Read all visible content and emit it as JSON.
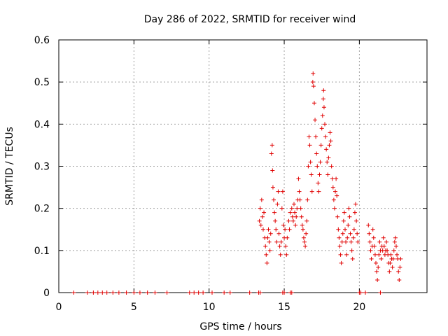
{
  "chart_data": {
    "type": "scatter",
    "title": "Day 286 of 2022, SRMTID for receiver wind",
    "xlabel": "GPS time / hours",
    "ylabel": "SRMTID / TECUs",
    "xlim": [
      0,
      24.5
    ],
    "ylim": [
      0,
      0.6
    ],
    "xticks": [
      0,
      5,
      10,
      15,
      20
    ],
    "yticks": [
      0,
      0.1,
      0.2,
      0.3,
      0.4,
      0.5,
      0.6
    ],
    "xtick_labels": [
      "0",
      "5",
      "10",
      "15",
      "20"
    ],
    "ytick_labels": [
      "0",
      "0.1",
      "0.2",
      "0.3",
      "0.4",
      "0.5",
      "0.6"
    ],
    "grid": true,
    "series": [
      {
        "name": "SRMTID",
        "color": "#e00000",
        "marker": "plus",
        "points": [
          [
            1.0,
            0
          ],
          [
            1.9,
            0
          ],
          [
            2.3,
            0
          ],
          [
            2.6,
            0
          ],
          [
            2.9,
            0
          ],
          [
            3.2,
            0
          ],
          [
            3.6,
            0
          ],
          [
            4.0,
            0
          ],
          [
            4.5,
            0
          ],
          [
            5.0,
            0
          ],
          [
            5.4,
            0
          ],
          [
            5.9,
            0
          ],
          [
            6.4,
            0
          ],
          [
            7.2,
            0
          ],
          [
            8.7,
            0
          ],
          [
            9.0,
            0
          ],
          [
            9.3,
            0
          ],
          [
            9.6,
            0
          ],
          [
            10.2,
            0
          ],
          [
            11.0,
            0
          ],
          [
            11.4,
            0
          ],
          [
            12.7,
            0
          ],
          [
            13.3,
            0
          ],
          [
            13.4,
            0
          ],
          [
            14.9,
            0
          ],
          [
            15.0,
            0
          ],
          [
            15.4,
            0
          ],
          [
            15.5,
            0
          ],
          [
            20.0,
            0
          ],
          [
            20.1,
            0
          ],
          [
            20.4,
            0
          ],
          [
            21.4,
            0
          ],
          [
            13.35,
            0.17
          ],
          [
            13.4,
            0.2
          ],
          [
            13.45,
            0.16
          ],
          [
            13.5,
            0.22
          ],
          [
            13.55,
            0.18
          ],
          [
            13.6,
            0.15
          ],
          [
            13.65,
            0.19
          ],
          [
            13.7,
            0.13
          ],
          [
            13.75,
            0.11
          ],
          [
            13.8,
            0.09
          ],
          [
            13.85,
            0.07
          ],
          [
            13.9,
            0.13
          ],
          [
            13.95,
            0.15
          ],
          [
            14.0,
            0.12
          ],
          [
            14.05,
            0.1
          ],
          [
            14.1,
            0.14
          ],
          [
            14.15,
            0.33
          ],
          [
            14.2,
            0.35
          ],
          [
            14.22,
            0.29
          ],
          [
            14.25,
            0.25
          ],
          [
            14.3,
            0.22
          ],
          [
            14.35,
            0.19
          ],
          [
            14.4,
            0.17
          ],
          [
            14.45,
            0.15
          ],
          [
            14.5,
            0.12
          ],
          [
            14.55,
            0.21
          ],
          [
            14.6,
            0.24
          ],
          [
            14.65,
            0.14
          ],
          [
            14.7,
            0.11
          ],
          [
            14.75,
            0.09
          ],
          [
            14.8,
            0.12
          ],
          [
            14.85,
            0.2
          ],
          [
            14.9,
            0.24
          ],
          [
            14.95,
            0.16
          ],
          [
            15.0,
            0.13
          ],
          [
            15.05,
            0.15
          ],
          [
            15.1,
            0.11
          ],
          [
            15.15,
            0.09
          ],
          [
            15.2,
            0.13
          ],
          [
            15.3,
            0.17
          ],
          [
            15.35,
            0.15
          ],
          [
            15.4,
            0.19
          ],
          [
            15.5,
            0.2
          ],
          [
            15.55,
            0.18
          ],
          [
            15.6,
            0.17
          ],
          [
            15.65,
            0.21
          ],
          [
            15.7,
            0.19
          ],
          [
            15.75,
            0.16
          ],
          [
            15.8,
            0.18
          ],
          [
            15.85,
            0.2
          ],
          [
            15.9,
            0.22
          ],
          [
            15.95,
            0.27
          ],
          [
            16.0,
            0.24
          ],
          [
            16.05,
            0.22
          ],
          [
            16.1,
            0.2
          ],
          [
            16.15,
            0.18
          ],
          [
            16.2,
            0.16
          ],
          [
            16.25,
            0.15
          ],
          [
            16.3,
            0.13
          ],
          [
            16.35,
            0.12
          ],
          [
            16.4,
            0.11
          ],
          [
            16.45,
            0.14
          ],
          [
            16.5,
            0.17
          ],
          [
            16.55,
            0.22
          ],
          [
            16.6,
            0.3
          ],
          [
            16.65,
            0.37
          ],
          [
            16.7,
            0.35
          ],
          [
            16.75,
            0.31
          ],
          [
            16.8,
            0.28
          ],
          [
            16.85,
            0.24
          ],
          [
            16.9,
            0.5
          ],
          [
            16.92,
            0.52
          ],
          [
            16.95,
            0.49
          ],
          [
            17.0,
            0.45
          ],
          [
            17.05,
            0.41
          ],
          [
            17.1,
            0.37
          ],
          [
            17.15,
            0.33
          ],
          [
            17.2,
            0.3
          ],
          [
            17.25,
            0.26
          ],
          [
            17.3,
            0.24
          ],
          [
            17.35,
            0.28
          ],
          [
            17.4,
            0.31
          ],
          [
            17.45,
            0.35
          ],
          [
            17.5,
            0.39
          ],
          [
            17.55,
            0.42
          ],
          [
            17.6,
            0.46
          ],
          [
            17.62,
            0.48
          ],
          [
            17.65,
            0.44
          ],
          [
            17.7,
            0.4
          ],
          [
            17.75,
            0.37
          ],
          [
            17.8,
            0.34
          ],
          [
            17.85,
            0.31
          ],
          [
            17.9,
            0.28
          ],
          [
            17.95,
            0.32
          ],
          [
            18.0,
            0.35
          ],
          [
            18.05,
            0.38
          ],
          [
            18.1,
            0.36
          ],
          [
            18.15,
            0.3
          ],
          [
            18.2,
            0.27
          ],
          [
            18.25,
            0.25
          ],
          [
            18.3,
            0.22
          ],
          [
            18.35,
            0.2
          ],
          [
            18.4,
            0.24
          ],
          [
            18.45,
            0.27
          ],
          [
            18.5,
            0.23
          ],
          [
            18.55,
            0.18
          ],
          [
            18.6,
            0.15
          ],
          [
            18.65,
            0.13
          ],
          [
            18.7,
            0.11
          ],
          [
            18.75,
            0.09
          ],
          [
            18.8,
            0.07
          ],
          [
            18.85,
            0.12
          ],
          [
            18.9,
            0.14
          ],
          [
            18.95,
            0.17
          ],
          [
            19.0,
            0.19
          ],
          [
            19.05,
            0.15
          ],
          [
            19.1,
            0.12
          ],
          [
            19.15,
            0.09
          ],
          [
            19.2,
            0.13
          ],
          [
            19.25,
            0.16
          ],
          [
            19.3,
            0.2
          ],
          [
            19.35,
            0.18
          ],
          [
            19.4,
            0.14
          ],
          [
            19.45,
            0.12
          ],
          [
            19.5,
            0.1
          ],
          [
            19.55,
            0.08
          ],
          [
            19.6,
            0.13
          ],
          [
            19.65,
            0.15
          ],
          [
            19.7,
            0.19
          ],
          [
            19.75,
            0.21
          ],
          [
            19.8,
            0.17
          ],
          [
            19.85,
            0.14
          ],
          [
            19.9,
            0.12
          ],
          [
            20.6,
            0.16
          ],
          [
            20.65,
            0.14
          ],
          [
            20.7,
            0.12
          ],
          [
            20.75,
            0.1
          ],
          [
            20.8,
            0.08
          ],
          [
            20.85,
            0.11
          ],
          [
            20.9,
            0.15
          ],
          [
            20.95,
            0.13
          ],
          [
            21.0,
            0.11
          ],
          [
            21.05,
            0.09
          ],
          [
            21.1,
            0.07
          ],
          [
            21.15,
            0.05
          ],
          [
            21.2,
            0.03
          ],
          [
            21.25,
            0.06
          ],
          [
            21.3,
            0.09
          ],
          [
            21.35,
            0.12
          ],
          [
            21.4,
            0.1
          ],
          [
            21.45,
            0.08
          ],
          [
            21.5,
            0.11
          ],
          [
            21.55,
            0.1
          ],
          [
            21.6,
            0.13
          ],
          [
            21.65,
            0.11
          ],
          [
            21.7,
            0.09
          ],
          [
            21.75,
            0.1
          ],
          [
            21.8,
            0.12
          ],
          [
            21.85,
            0.1
          ],
          [
            21.9,
            0.09
          ],
          [
            21.95,
            0.07
          ],
          [
            22.0,
            0.05
          ],
          [
            22.05,
            0.07
          ],
          [
            22.1,
            0.09
          ],
          [
            22.15,
            0.08
          ],
          [
            22.2,
            0.06
          ],
          [
            22.25,
            0.08
          ],
          [
            22.3,
            0.1
          ],
          [
            22.35,
            0.12
          ],
          [
            22.4,
            0.13
          ],
          [
            22.45,
            0.11
          ],
          [
            22.5,
            0.09
          ],
          [
            22.55,
            0.08
          ],
          [
            22.6,
            0.05
          ],
          [
            22.65,
            0.03
          ],
          [
            22.7,
            0.06
          ],
          [
            22.75,
            0.08
          ]
        ]
      }
    ]
  }
}
